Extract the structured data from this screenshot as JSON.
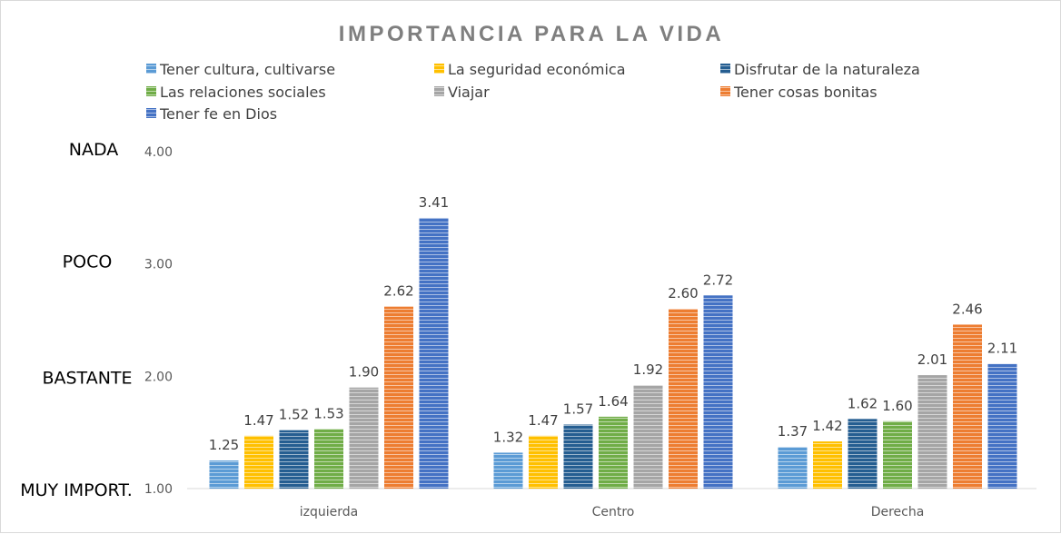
{
  "chart_data": {
    "type": "bar",
    "title": "IMPORTANCIA PARA LA VIDA",
    "categories": [
      "izquierda",
      "Centro",
      "Derecha"
    ],
    "series": [
      {
        "name": "Tener cultura, cultivarse",
        "color": "#5b9bd5",
        "values": [
          1.25,
          1.32,
          1.37
        ]
      },
      {
        "name": "La seguridad económica",
        "color": "#ffc000",
        "values": [
          1.47,
          1.47,
          1.42
        ]
      },
      {
        "name": "Disfrutar de la naturaleza",
        "color": "#255e91",
        "values": [
          1.52,
          1.57,
          1.62
        ]
      },
      {
        "name": "Las relaciones sociales",
        "color": "#70ad47",
        "values": [
          1.53,
          1.64,
          1.6
        ]
      },
      {
        "name": "Viajar",
        "color": "#a5a5a5",
        "values": [
          1.9,
          1.92,
          2.01
        ]
      },
      {
        "name": "Tener cosas bonitas",
        "color": "#ed7d31",
        "values": [
          2.62,
          2.6,
          2.46
        ]
      },
      {
        "name": "Tener fe en Dios",
        "color": "#4472c4",
        "values": [
          3.41,
          2.72,
          2.11
        ]
      }
    ],
    "ylim": [
      1.0,
      4.0
    ],
    "yticks": [
      1.0,
      2.0,
      3.0,
      4.0
    ],
    "ytick_labels": [
      "1.00",
      "2.00",
      "3.00",
      "4.00"
    ],
    "level_labels": [
      "MUY IMPORT.",
      "BASTANTE",
      "POCO",
      "NADA"
    ],
    "legend_position": "top",
    "grid": false,
    "bar_pattern": "horizontal stripes"
  }
}
